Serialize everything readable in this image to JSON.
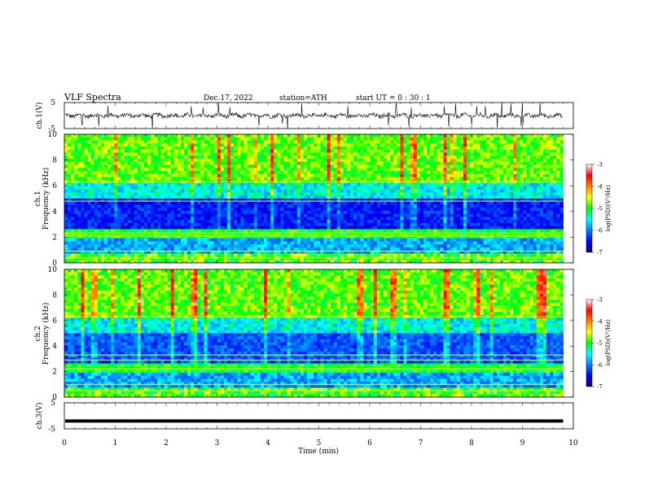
{
  "header": {
    "title": "VLF  Spectra",
    "date": "Dec.17, 2022",
    "station": "station=ATH",
    "start": "start  UT  =    0  : 30 : 1"
  },
  "chart_data": [
    {
      "type": "line",
      "panel": "ch1-waveform",
      "ylabel": "ch.1(V)",
      "ylim": [
        -5,
        5
      ],
      "yticks": [
        "5",
        "-5"
      ],
      "xlim": [
        0,
        10
      ],
      "color": "#000000",
      "baseline": 0
    },
    {
      "type": "heatmap",
      "panel": "ch1-spectrogram",
      "ylabel": "ch.1\nFrequency  (kHz)",
      "ylabel_lines": [
        "ch.1",
        "Frequency  (kHz)"
      ],
      "ylim": [
        0,
        10
      ],
      "yticks": [
        "0",
        "2",
        "4",
        "6",
        "8",
        "10"
      ],
      "xlim": [
        0,
        10
      ],
      "data_end_min": 9.8,
      "colorbar": {
        "label": "log(PSD)(V²/Hz)",
        "range": [
          -7,
          -3
        ],
        "ticks": [
          "-3",
          "-4",
          "-5",
          "-6",
          "-7"
        ]
      }
    },
    {
      "type": "heatmap",
      "panel": "ch2-spectrogram",
      "ylabel": "ch.2\nFrequency  (kHz)",
      "ylabel_lines": [
        "ch.2",
        "Frequency  (kHz)"
      ],
      "ylim": [
        0,
        10
      ],
      "yticks": [
        "0",
        "2",
        "4",
        "6",
        "8",
        "10"
      ],
      "xlim": [
        0,
        10
      ],
      "data_end_min": 9.8,
      "colorbar": {
        "label": "log(PSD)(V²/Hz)",
        "range": [
          -7,
          -3
        ],
        "ticks": [
          "-3",
          "-4",
          "-5",
          "-6",
          "-7"
        ]
      }
    },
    {
      "type": "line",
      "panel": "ch3-waveform",
      "ylabel": "ch.3(V)",
      "ylim": [
        -5,
        5
      ],
      "yticks": [
        "5",
        "-5"
      ],
      "xlim": [
        0,
        10
      ],
      "xlabel": "Time  (min)",
      "xticks": [
        "0",
        "1",
        "2",
        "3",
        "4",
        "5",
        "6",
        "7",
        "8",
        "9",
        "10"
      ],
      "level": -2,
      "color": "#000000"
    }
  ]
}
